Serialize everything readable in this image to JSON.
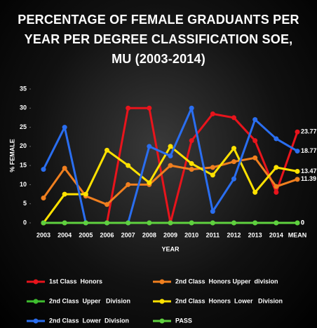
{
  "chart_data": {
    "type": "line",
    "title": "PERCENTAGE OF FEMALE GRADUANTS PER YEAR PER DEGREE CLASSIFICATION SOE, MU (2003-2014)",
    "x_label": "YEAR",
    "y_label": "% FEMALE",
    "categories": [
      "2003",
      "2004",
      "2005",
      "2006",
      "2007",
      "2008",
      "2009",
      "2010",
      "2011",
      "2012",
      "2013",
      "2014",
      "MEAN"
    ],
    "ylim": [
      0,
      35
    ],
    "yticks": [
      0,
      5,
      10,
      15,
      20,
      25,
      30,
      35
    ],
    "grid": false,
    "series": [
      {
        "name": "1st Class  Honors",
        "color": "#e8141c",
        "values": [
          0,
          0,
          0,
          0,
          30,
          30,
          0,
          21.5,
          28.5,
          27.5,
          21.5,
          8,
          23.77
        ]
      },
      {
        "name": "2nd Class  Honors Upper  division",
        "color": "#f07f1f",
        "values": [
          6.5,
          14.3,
          7,
          4.8,
          10,
          10,
          15,
          14,
          14.5,
          16,
          17,
          9.5,
          11.39
        ]
      },
      {
        "name": "2nd Class  Upper   Division",
        "color": "#3fbf2f",
        "values": [
          0,
          0,
          0,
          0,
          0,
          0,
          0,
          0,
          0,
          0,
          0,
          0,
          0
        ]
      },
      {
        "name": "2nd Class  Honors  Lower   Division",
        "color": "#ffe100",
        "values": [
          0,
          7.5,
          7.5,
          19,
          15,
          10.5,
          20,
          15.5,
          12.5,
          19.5,
          8,
          14.5,
          13.47
        ]
      },
      {
        "name": "2nd Class  Lower  Division",
        "color": "#2a6ef0",
        "values": [
          14,
          25,
          0,
          0,
          0,
          20,
          17.5,
          30,
          3,
          11.5,
          27,
          22,
          18.77
        ]
      },
      {
        "name": "PASS",
        "color": "#5fd13f",
        "values": [
          0,
          0,
          0,
          0,
          0,
          0,
          0,
          0,
          0,
          0,
          0,
          0,
          0
        ]
      }
    ]
  }
}
